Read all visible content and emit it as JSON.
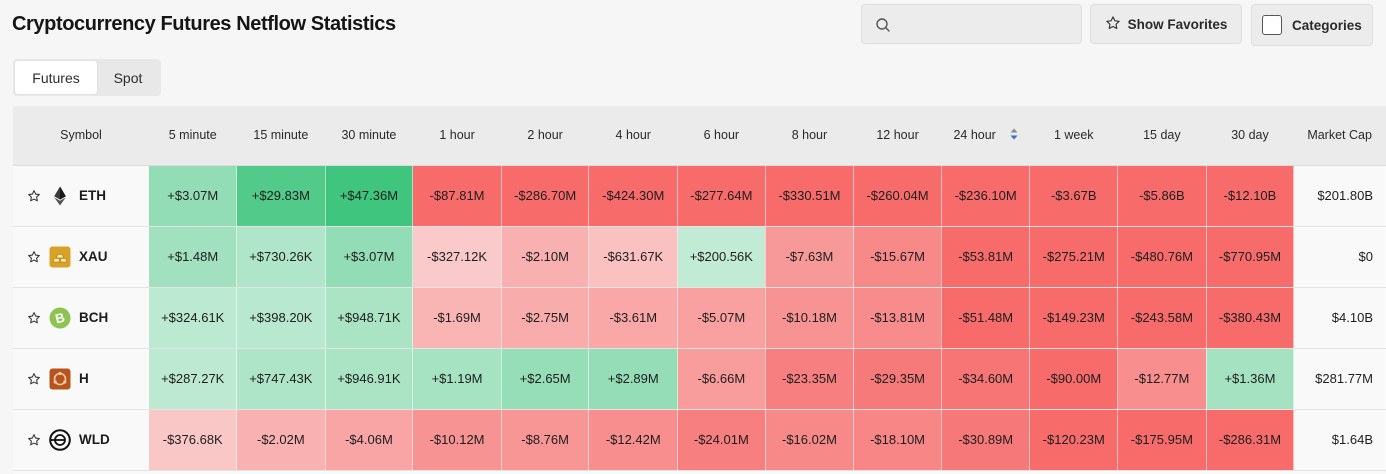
{
  "header": {
    "title": "Cryptocurrency Futures Netflow Statistics",
    "search_placeholder": "",
    "favorites_label": "Show Favorites",
    "categories_label": "Categories"
  },
  "tabs": [
    {
      "label": "Futures",
      "active": true
    },
    {
      "label": "Spot",
      "active": false
    }
  ],
  "table": {
    "columns": [
      "Symbol",
      "5 minute",
      "15 minute",
      "30 minute",
      "1 hour",
      "2 hour",
      "4 hour",
      "6 hour",
      "8 hour",
      "12 hour",
      "24 hour",
      "1 week",
      "15 day",
      "30 day",
      "Market Cap"
    ],
    "sorted_column": "24 hour",
    "rows": [
      {
        "symbol": "ETH",
        "icon": "ethereum-icon",
        "values": [
          "+$3.07M",
          "+$29.83M",
          "+$47.36M",
          "-$87.81M",
          "-$286.70M",
          "-$424.30M",
          "-$277.64M",
          "-$330.51M",
          "-$260.04M",
          "-$236.10M",
          "-$3.67B",
          "-$5.86B",
          "-$12.10B"
        ],
        "market_cap": "$201.80B"
      },
      {
        "symbol": "XAU",
        "icon": "gold-bars-icon",
        "values": [
          "+$1.48M",
          "+$730.26K",
          "+$3.07M",
          "-$327.12K",
          "-$2.10M",
          "-$631.67K",
          "+$200.56K",
          "-$7.63M",
          "-$15.67M",
          "-$53.81M",
          "-$275.21M",
          "-$480.76M",
          "-$770.95M"
        ],
        "market_cap": "$0"
      },
      {
        "symbol": "BCH",
        "icon": "bitcoin-cash-icon",
        "values": [
          "+$324.61K",
          "+$398.20K",
          "+$948.71K",
          "-$1.69M",
          "-$2.75M",
          "-$3.61M",
          "-$5.07M",
          "-$10.18M",
          "-$13.81M",
          "-$51.48M",
          "-$149.23M",
          "-$243.58M",
          "-$380.43M"
        ],
        "market_cap": "$4.10B"
      },
      {
        "symbol": "H",
        "icon": "humanity-icon",
        "values": [
          "+$287.27K",
          "+$747.43K",
          "+$946.91K",
          "+$1.19M",
          "+$2.65M",
          "+$2.89M",
          "-$6.66M",
          "-$23.35M",
          "-$29.35M",
          "-$34.60M",
          "-$90.00M",
          "-$12.77M",
          "+$1.36M"
        ],
        "market_cap": "$281.77M"
      },
      {
        "symbol": "WLD",
        "icon": "worldcoin-icon",
        "values": [
          "-$376.68K",
          "-$2.02M",
          "-$4.06M",
          "-$10.12M",
          "-$8.76M",
          "-$12.42M",
          "-$24.01M",
          "-$16.02M",
          "-$18.10M",
          "-$30.89M",
          "-$120.23M",
          "-$175.95M",
          "-$286.31M"
        ],
        "market_cap": "$1.64B"
      }
    ]
  },
  "colors": {
    "positive": "#3ec47e",
    "negative": "#f76b6b",
    "sort_arrow_up": "#8a8a8a",
    "sort_arrow_down": "#2f6fd6"
  }
}
